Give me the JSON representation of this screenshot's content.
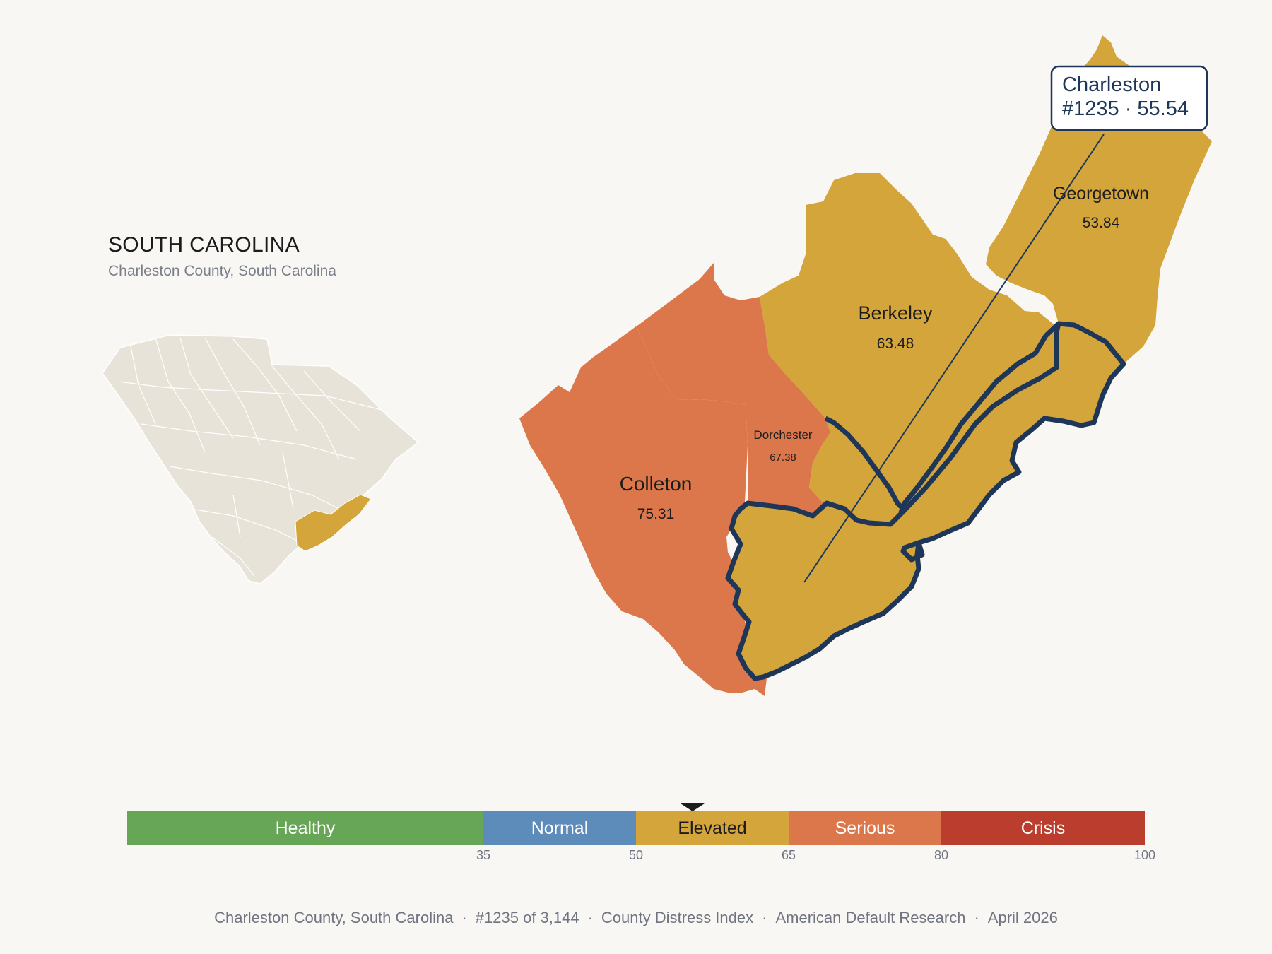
{
  "header": {
    "state_title": "SOUTH CAROLINA",
    "subtitle": "Charleston County, South Carolina"
  },
  "map": {
    "counties": [
      {
        "name": "Georgetown",
        "value": "53.84",
        "category": "Elevated"
      },
      {
        "name": "Berkeley",
        "value": "63.48",
        "category": "Elevated"
      },
      {
        "name": "Dorchester",
        "value": "67.38",
        "category": "Serious"
      },
      {
        "name": "Colleton",
        "value": "75.31",
        "category": "Serious"
      },
      {
        "name": "Charleston",
        "value": "55.54",
        "category": "Elevated",
        "highlighted": true
      }
    ],
    "callout": {
      "line1": "Charleston",
      "line2": "#1235 · 55.54"
    }
  },
  "scale": {
    "segments": [
      {
        "label": "Healthy",
        "min": 0,
        "max": 35,
        "color": "#68a657"
      },
      {
        "label": "Normal",
        "min": 35,
        "max": 50,
        "color": "#5d8bba"
      },
      {
        "label": "Elevated",
        "min": 50,
        "max": 65,
        "color": "#d3a53b"
      },
      {
        "label": "Serious",
        "min": 65,
        "max": 80,
        "color": "#dc774b"
      },
      {
        "label": "Crisis",
        "min": 80,
        "max": 100,
        "color": "#ba3d2d"
      }
    ],
    "ticks": [
      "35",
      "50",
      "65",
      "80",
      "100"
    ],
    "marker_value": 55.54
  },
  "footer": {
    "items": [
      "Charleston County, South Carolina",
      "#1235 of 3,144",
      "County Distress Index",
      "American Default Research",
      "April 2026"
    ],
    "separator": "·"
  },
  "colors": {
    "background": "#f9f7f4",
    "elevated": "#d3a53b",
    "serious": "#dc774b",
    "outline": "#1e3759",
    "inset_fill": "#e8e3d9"
  }
}
